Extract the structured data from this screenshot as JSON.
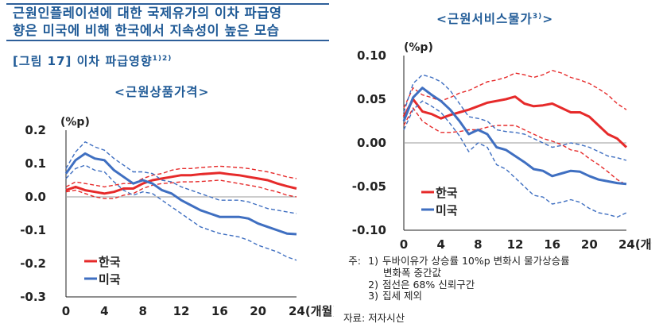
{
  "header": {
    "title_lines": [
      "근원인플레이션에 대한 국제유가의 이차 파급영",
      "향은 미국에 비해 한국에서 지속성이 높은 모습"
    ],
    "figure_label": "[그림 17] 이차 파급영향",
    "figure_sup": "1)2)"
  },
  "chart_data": [
    {
      "type": "line",
      "title": "<근원상품가격>",
      "title_sup": "",
      "ylabel": "(%p)",
      "xlabel": "24(개월)",
      "ylim": [
        -0.3,
        0.2
      ],
      "y_ticks": [
        "0.2",
        "0.1",
        "0.0",
        "-0.1",
        "-0.2",
        "-0.3"
      ],
      "x_ticks": [
        "0",
        "4",
        "8",
        "12",
        "16",
        "20",
        "24(개월)"
      ],
      "x_tick_values": [
        0,
        4,
        8,
        12,
        16,
        20,
        24
      ],
      "legend": [
        "한국",
        "미국"
      ],
      "legend_position": "bottom-left",
      "x": [
        0,
        1,
        2,
        3,
        4,
        5,
        6,
        7,
        8,
        9,
        10,
        11,
        12,
        13,
        14,
        15,
        16,
        17,
        18,
        19,
        20,
        21,
        22,
        23,
        24
      ],
      "series": [
        {
          "name": "한국",
          "color": "#e62a2a",
          "style": "solid",
          "values": [
            0.02,
            0.03,
            0.02,
            0.015,
            0.01,
            0.015,
            0.025,
            0.025,
            0.04,
            0.05,
            0.055,
            0.06,
            0.065,
            0.065,
            0.068,
            0.07,
            0.072,
            0.068,
            0.065,
            0.06,
            0.055,
            0.05,
            0.04,
            0.032,
            0.025
          ]
        },
        {
          "role": "ko_upper",
          "color": "#e62a2a",
          "style": "dashed",
          "values": [
            0.03,
            0.045,
            0.04,
            0.035,
            0.03,
            0.035,
            0.04,
            0.04,
            0.055,
            0.065,
            0.07,
            0.08,
            0.085,
            0.085,
            0.088,
            0.09,
            0.092,
            0.09,
            0.088,
            0.085,
            0.08,
            0.075,
            0.068,
            0.06,
            0.055
          ]
        },
        {
          "role": "ko_lower",
          "color": "#e62a2a",
          "style": "dashed",
          "values": [
            0.015,
            0.02,
            0.01,
            0.0,
            -0.005,
            -0.005,
            0.005,
            0.01,
            0.025,
            0.035,
            0.04,
            0.042,
            0.045,
            0.045,
            0.046,
            0.048,
            0.05,
            0.045,
            0.04,
            0.035,
            0.03,
            0.022,
            0.015,
            0.005,
            0.0
          ]
        },
        {
          "name": "미국",
          "color": "#3f6fc1",
          "style": "solid",
          "values": [
            0.07,
            0.11,
            0.13,
            0.115,
            0.11,
            0.08,
            0.06,
            0.04,
            0.05,
            0.04,
            0.02,
            0.01,
            -0.01,
            -0.025,
            -0.04,
            -0.05,
            -0.06,
            -0.06,
            -0.06,
            -0.065,
            -0.08,
            -0.09,
            -0.1,
            -0.11,
            -0.112
          ]
        },
        {
          "role": "us_upper",
          "color": "#3f6fc1",
          "style": "dashed",
          "values": [
            0.085,
            0.135,
            0.165,
            0.15,
            0.14,
            0.115,
            0.095,
            0.075,
            0.075,
            0.07,
            0.05,
            0.045,
            0.03,
            0.02,
            0.01,
            0.0,
            -0.01,
            -0.01,
            -0.01,
            -0.015,
            -0.025,
            -0.035,
            -0.04,
            -0.045,
            -0.05
          ]
        },
        {
          "role": "us_lower",
          "color": "#3f6fc1",
          "style": "dashed",
          "values": [
            0.055,
            0.085,
            0.095,
            0.08,
            0.075,
            0.045,
            0.02,
            0.005,
            0.015,
            0.01,
            -0.01,
            -0.03,
            -0.05,
            -0.07,
            -0.09,
            -0.1,
            -0.11,
            -0.115,
            -0.12,
            -0.13,
            -0.145,
            -0.155,
            -0.165,
            -0.18,
            -0.19
          ]
        }
      ]
    },
    {
      "type": "line",
      "title": "<근원서비스물가",
      "title_sup": "3)",
      "title_end": ">",
      "ylabel": "(%p)",
      "xlabel": "24(개월)",
      "ylim": [
        -0.1,
        0.1
      ],
      "y_ticks": [
        "0.10",
        "0.05",
        "0.00",
        "-0.05",
        "-0.10"
      ],
      "x_ticks": [
        "0",
        "4",
        "8",
        "12",
        "16",
        "20",
        "24(개월)"
      ],
      "x_tick_values": [
        0,
        4,
        8,
        12,
        16,
        20,
        24
      ],
      "legend": [
        "한국",
        "미국"
      ],
      "legend_position": "bottom-left",
      "x": [
        0,
        1,
        2,
        3,
        4,
        5,
        6,
        7,
        8,
        9,
        10,
        11,
        12,
        13,
        14,
        15,
        16,
        17,
        18,
        19,
        20,
        21,
        22,
        23,
        24
      ],
      "series": [
        {
          "name": "한국",
          "color": "#e62a2a",
          "style": "solid",
          "values": [
            0.03,
            0.05,
            0.036,
            0.033,
            0.028,
            0.032,
            0.035,
            0.038,
            0.042,
            0.046,
            0.048,
            0.05,
            0.053,
            0.045,
            0.042,
            0.043,
            0.045,
            0.04,
            0.035,
            0.035,
            0.03,
            0.02,
            0.01,
            0.005,
            -0.005
          ]
        },
        {
          "role": "ko_upper",
          "color": "#e62a2a",
          "style": "dashed",
          "values": [
            0.04,
            0.063,
            0.055,
            0.052,
            0.048,
            0.052,
            0.057,
            0.06,
            0.065,
            0.07,
            0.072,
            0.075,
            0.08,
            0.078,
            0.075,
            0.078,
            0.083,
            0.08,
            0.075,
            0.072,
            0.068,
            0.062,
            0.055,
            0.045,
            0.038
          ]
        },
        {
          "role": "ko_lower",
          "color": "#e62a2a",
          "style": "dashed",
          "values": [
            0.02,
            0.04,
            0.025,
            0.018,
            0.012,
            0.012,
            0.013,
            0.015,
            0.015,
            0.018,
            0.02,
            0.02,
            0.02,
            0.015,
            0.01,
            0.005,
            0.002,
            -0.002,
            -0.008,
            -0.01,
            -0.018,
            -0.025,
            -0.033,
            -0.042,
            -0.048
          ]
        },
        {
          "name": "미국",
          "color": "#3f6fc1",
          "style": "solid",
          "values": [
            0.025,
            0.052,
            0.063,
            0.055,
            0.048,
            0.038,
            0.025,
            0.01,
            0.015,
            0.01,
            -0.005,
            -0.008,
            -0.015,
            -0.022,
            -0.03,
            -0.032,
            -0.038,
            -0.035,
            -0.032,
            -0.033,
            -0.038,
            -0.042,
            -0.044,
            -0.046,
            -0.047
          ]
        },
        {
          "role": "us_upper",
          "color": "#3f6fc1",
          "style": "dashed",
          "values": [
            0.035,
            0.068,
            0.078,
            0.075,
            0.07,
            0.06,
            0.045,
            0.03,
            0.028,
            0.025,
            0.015,
            0.013,
            0.012,
            0.01,
            0.005,
            0.0,
            -0.005,
            -0.003,
            0.0,
            -0.002,
            -0.005,
            -0.01,
            -0.015,
            -0.017,
            -0.02
          ]
        },
        {
          "role": "us_lower",
          "color": "#3f6fc1",
          "style": "dashed",
          "values": [
            0.015,
            0.038,
            0.048,
            0.042,
            0.035,
            0.022,
            0.008,
            -0.01,
            0.0,
            -0.005,
            -0.025,
            -0.03,
            -0.04,
            -0.05,
            -0.06,
            -0.062,
            -0.07,
            -0.068,
            -0.065,
            -0.068,
            -0.075,
            -0.08,
            -0.082,
            -0.085,
            -0.08
          ]
        }
      ]
    }
  ],
  "notes": {
    "label": "주:",
    "items": [
      {
        "marker": "1)",
        "text": "두바이유가 상승률 10%p 변화시 물가상승률"
      },
      {
        "marker": "",
        "text": "변화폭 중간값"
      },
      {
        "marker": "2)",
        "text": "점선은 68% 신뢰구간"
      },
      {
        "marker": "3)",
        "text": "집세 제외"
      }
    ]
  },
  "source": "자료: 저자시산"
}
